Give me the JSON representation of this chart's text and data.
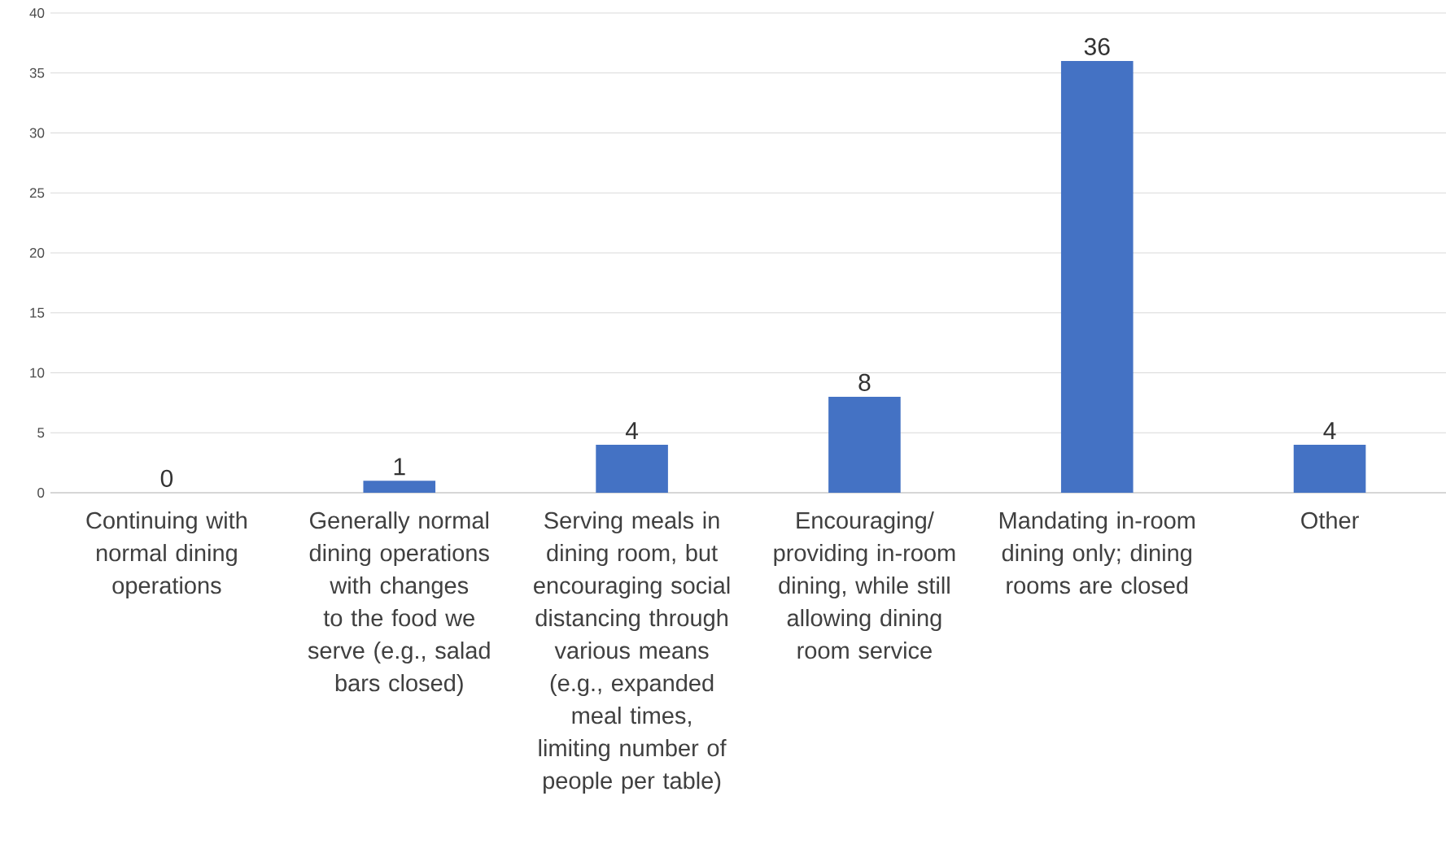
{
  "chart_data": {
    "type": "bar",
    "categories": [
      "Continuing with normal dining operations",
      "Generally normal dining operations with changes to the food we serve (e.g., salad bars closed)",
      "Serving meals in dining room, but encouraging social distancing through various means (e.g., expanded meal times, limiting number of people per table)",
      "Encouraging/ providing in-room dining, while still allowing dining room service",
      "Mandating in-room dining only; dining rooms are closed",
      "Other"
    ],
    "values": [
      0,
      1,
      4,
      8,
      36,
      4
    ],
    "color": "#4472c4",
    "ylim": [
      0,
      40
    ],
    "yticks": [
      0,
      5,
      10,
      15,
      20,
      25,
      30,
      35,
      40
    ],
    "grid": "y",
    "data_labels": true
  }
}
